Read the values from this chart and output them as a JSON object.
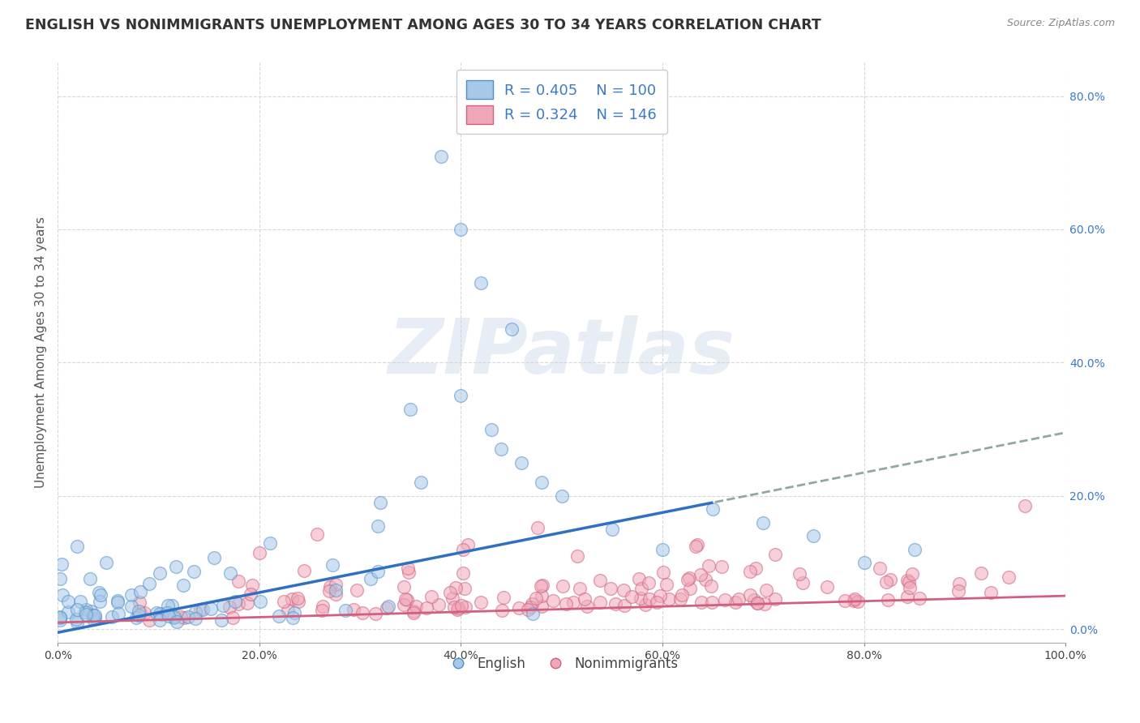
{
  "title": "ENGLISH VS NONIMMIGRANTS UNEMPLOYMENT AMONG AGES 30 TO 34 YEARS CORRELATION CHART",
  "source": "Source: ZipAtlas.com",
  "ylabel": "Unemployment Among Ages 30 to 34 years",
  "xlim": [
    0,
    1.0
  ],
  "ylim": [
    -0.02,
    0.85
  ],
  "xticks": [
    0.0,
    0.2,
    0.4,
    0.6,
    0.8,
    1.0
  ],
  "xtick_labels": [
    "0.0%",
    "20.0%",
    "40.0%",
    "60.0%",
    "80.0%",
    "100.0%"
  ],
  "yticks": [
    0.0,
    0.2,
    0.4,
    0.6,
    0.8
  ],
  "ytick_labels_right": [
    "0.0%",
    "20.0%",
    "40.0%",
    "60.0%",
    "80.0%"
  ],
  "watermark": "ZIPatlas",
  "english_color": "#a8c8e8",
  "english_edge_color": "#5090c8",
  "nonimm_color": "#f0a8b8",
  "nonimm_edge_color": "#d06080",
  "english_R": 0.405,
  "english_N": 100,
  "nonimm_R": 0.324,
  "nonimm_N": 146,
  "legend_text_color": "#3a7ac8",
  "grid_color": "#d8d8d8",
  "title_color": "#333333",
  "bg_color": "#ffffff",
  "english_line_color": "#3070c0",
  "nonimm_line_color": "#d06080",
  "nonimm_dash_color": "#90a8a0",
  "english_line_slope": 0.3,
  "english_line_intercept": -0.005,
  "nonimm_line_slope": 0.04,
  "nonimm_line_intercept": 0.01,
  "marker_size": 130,
  "marker_alpha": 0.55,
  "title_fontsize": 12.5,
  "axis_label_fontsize": 11,
  "tick_fontsize": 10,
  "legend_fontsize": 13
}
